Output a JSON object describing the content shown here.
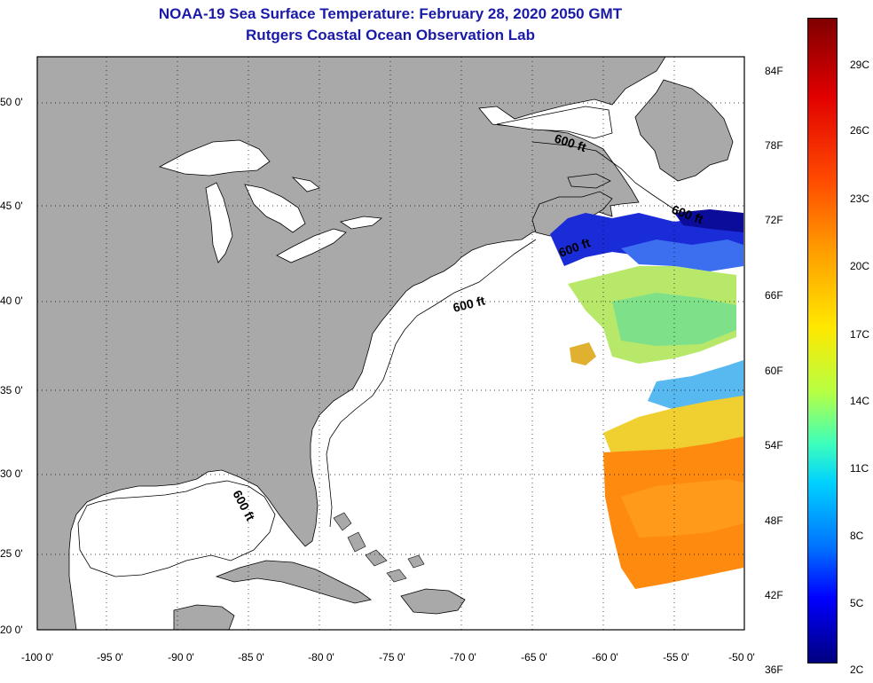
{
  "title_line1": "NOAA-19 Sea Surface Temperature:  February 28, 2020 2050 GMT",
  "title_line2": "Rutgers Coastal Ocean Observation Lab",
  "latitude_labels": [
    "50 0'",
    "45 0'",
    "40 0'",
    "35 0'",
    "30 0'",
    "25 0'",
    "20 0'"
  ],
  "longitude_labels": [
    "-100 0'",
    "-95 0'",
    "-90 0'",
    "-85 0'",
    "-80 0'",
    "-75 0'",
    "-70 0'",
    "-65 0'",
    "-60 0'",
    "-55 0'",
    "-50 0'"
  ],
  "contour_labels": [
    "600 ft",
    "600 ft",
    "600 ft",
    "600 ft",
    "600 ft"
  ],
  "colorbar": {
    "fahrenheit": [
      "84F",
      "78F",
      "72F",
      "66F",
      "60F",
      "54F",
      "48F",
      "42F",
      "36F"
    ],
    "celsius": [
      "29C",
      "26C",
      "23C",
      "20C",
      "17C",
      "14C",
      "11C",
      "8C",
      "5C",
      "2C"
    ]
  },
  "colors": {
    "title": "#1a1aa8",
    "land": "#a9a9a9",
    "ocean": "#ffffff",
    "grid": "#000000"
  }
}
